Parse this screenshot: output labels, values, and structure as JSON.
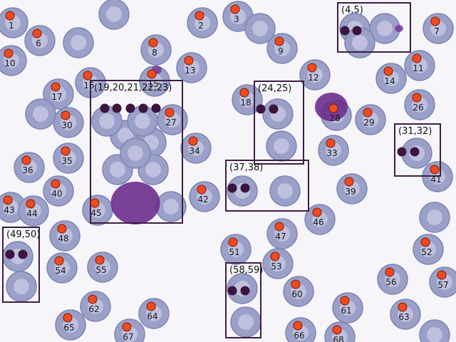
{
  "image": {
    "colors": {
      "background": "#f6f5f9",
      "marker": "#f04a1e",
      "group_box": "#3f1d44",
      "group_dot": "#3c1440"
    }
  },
  "cells": [
    {
      "label": "1"
    },
    {
      "label": "2"
    },
    {
      "label": "3"
    },
    {
      "label": "6"
    },
    {
      "label": "7"
    },
    {
      "label": "8"
    },
    {
      "label": "9"
    },
    {
      "label": "10"
    },
    {
      "label": "11"
    },
    {
      "label": "12"
    },
    {
      "label": "13"
    },
    {
      "label": "14"
    },
    {
      "label": "15"
    },
    {
      "label": "16"
    },
    {
      "label": "17"
    },
    {
      "label": "18"
    },
    {
      "label": "26"
    },
    {
      "label": "27"
    },
    {
      "label": "28"
    },
    {
      "label": "29"
    },
    {
      "label": "30"
    },
    {
      "label": "33"
    },
    {
      "label": "34"
    },
    {
      "label": "35"
    },
    {
      "label": "36"
    },
    {
      "label": "39"
    },
    {
      "label": "40"
    },
    {
      "label": "41"
    },
    {
      "label": "42"
    },
    {
      "label": "43"
    },
    {
      "label": "44"
    },
    {
      "label": "45"
    },
    {
      "label": "46"
    },
    {
      "label": "47"
    },
    {
      "label": "48"
    },
    {
      "label": "51"
    },
    {
      "label": "52"
    },
    {
      "label": "53"
    },
    {
      "label": "54"
    },
    {
      "label": "55"
    },
    {
      "label": "56"
    },
    {
      "label": "57"
    },
    {
      "label": "60"
    },
    {
      "label": "61"
    },
    {
      "label": "62"
    },
    {
      "label": "63"
    },
    {
      "label": "64"
    },
    {
      "label": "65"
    },
    {
      "label": "66"
    },
    {
      "label": "67"
    },
    {
      "label": "68"
    }
  ],
  "groups": [
    {
      "label": "(4,5)",
      "count": 2
    },
    {
      "label": "(19,20,21,22,23)",
      "count": 5
    },
    {
      "label": "(24,25)",
      "count": 2
    },
    {
      "label": "(31,32)",
      "count": 2
    },
    {
      "label": "(37,38)",
      "count": 2
    },
    {
      "label": "(49,50)",
      "count": 2
    },
    {
      "label": "(58,59)",
      "count": 2
    }
  ]
}
